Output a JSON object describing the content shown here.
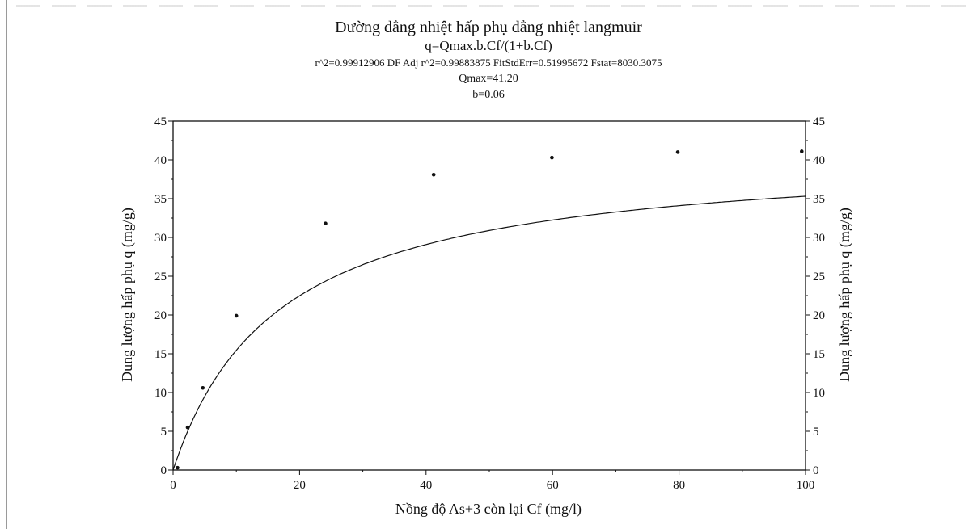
{
  "chart_data": {
    "type": "scatter",
    "title": "Đường đẳng nhiệt hấp phụ đẳng nhiệt langmuir",
    "subtitle": "q=Qmax.b.Cf/(1+b.Cf)",
    "stats": "r^2=0.99912906  DF Adj r^2=0.99883875  FitStdErr=0.51995672  Fstat=8030.3075",
    "qmax_label": "Qmax=41.20",
    "b_label": "b=0.06",
    "xlabel": "Nồng độ As+3 còn lại Cf (mg/l)",
    "ylabel": "Dung lượng hấp phụ q (mg/g)",
    "xlim": [
      0,
      100
    ],
    "ylim": [
      0,
      45
    ],
    "xticks": [
      0,
      20,
      40,
      60,
      80,
      100
    ],
    "yticks": [
      0,
      5,
      10,
      15,
      20,
      25,
      30,
      35,
      40,
      45
    ],
    "grid": false,
    "right_axis": true,
    "points": [
      {
        "x": 0.7,
        "y": 0.3
      },
      {
        "x": 2.3,
        "y": 5.5
      },
      {
        "x": 4.7,
        "y": 10.6
      },
      {
        "x": 10,
        "y": 19.9
      },
      {
        "x": 24.1,
        "y": 31.8
      },
      {
        "x": 41.2,
        "y": 38.1
      },
      {
        "x": 59.9,
        "y": 40.3
      },
      {
        "x": 79.8,
        "y": 41.0
      },
      {
        "x": 99.4,
        "y": 41.1
      }
    ],
    "fit": {
      "qmax": 41.2,
      "b": 0.06
    }
  }
}
